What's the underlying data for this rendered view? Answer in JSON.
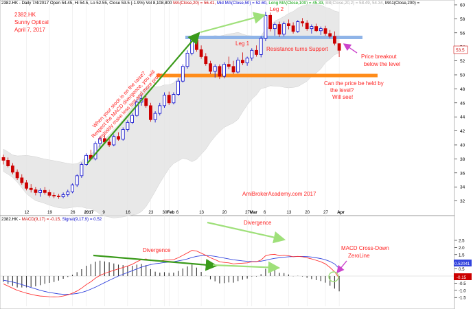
{
  "header": {
    "prefix": "2382.HK - Daily 7/4/2017 Open 54.45, Hi 54.5, Lo 52.55, Close 53.5 (-1.9%) Vol 8,108,800",
    "ma20": "MA(Close,20) = 56.41,",
    "mid": "Mid MA(Close,50) = 52.60,",
    "long": "Long MA(Close,100) = 45.33,",
    "faint": "BB(Close,20,2) = 58.49, 54.34,",
    "ma200": "MA1(Close,200) ="
  },
  "macd_header": {
    "prefix": "2382.HK -",
    "macd": "MACD(9,17) = -0.15,",
    "signal": "Signal(9,17,9) = 0.52"
  },
  "title_block": {
    "ticker": "2382.HK",
    "name": "Sunny Optical",
    "date": "April 7, 2017"
  },
  "annotations": {
    "leg1": "Leg 1",
    "leg2": "Leg 2",
    "resistance": "Resistance turns Support",
    "breakout1": "Price breakout",
    "breakout2": "below the level",
    "held1": "Can the price be held by",
    "held2": "the level?",
    "held3": "Will see!",
    "diag1": "When your stock is on the raise?",
    "diag2": "Respect the MACD divergence, you will",
    "diag3": "probably make less lost and more profit.",
    "watermark": "AmiBrokerAcademy.com  2017",
    "divergence_top": "Divergence",
    "divergence_low": "Divergence",
    "macd_cross1": "MACD Cross-Down",
    "macd_cross2": "ZeroLine"
  },
  "colors": {
    "up": "#0000cc",
    "down": "#cc0000",
    "band": "#e0e0e0",
    "support": "#ff8c1a",
    "resistance": "#8fb4e8",
    "macd": "#ff3333",
    "signal": "#3344dd",
    "annot": "#ff2222",
    "dark_green": "#3a9a1a",
    "light_green": "#9fe07a",
    "purple": "#cc44cc"
  },
  "price_axis": {
    "labels": [
      "60",
      "58",
      "56",
      "54",
      "52",
      "50",
      "48",
      "46",
      "44",
      "42",
      "40",
      "38",
      "36",
      "34",
      "32"
    ],
    "current": "53.5"
  },
  "macd_axis": {
    "labels": [
      "2.5",
      "2.0",
      "1.5",
      "1.0",
      "0.5",
      "0.0",
      "-0.5",
      "-1.0",
      "-1.5"
    ],
    "macd_tag": "-0.15",
    "signal_tag": "0.52041"
  },
  "x_axis": {
    "labels": [
      "12",
      "19",
      "26",
      "2017",
      "9",
      "16",
      "23",
      "30",
      "Feb",
      "6",
      "13",
      "20",
      "27",
      "Mar",
      "6",
      "13",
      "20",
      "27",
      "Apr"
    ]
  },
  "chart_data": {
    "type": "candlestick",
    "price_ylim": [
      31,
      60
    ],
    "macd_ylim": [
      -1.6,
      2.8
    ],
    "levels": {
      "resistance_turned_support": 55.2,
      "support": 50.1
    },
    "candles": [
      [
        38.2,
        38.6,
        37.2,
        37.8
      ],
      [
        37.8,
        38.2,
        36.8,
        37.0
      ],
      [
        37.0,
        37.4,
        35.8,
        36.1
      ],
      [
        36.1,
        36.5,
        35.0,
        35.3
      ],
      [
        35.3,
        35.8,
        34.3,
        34.6
      ],
      [
        34.6,
        35.0,
        33.5,
        33.8
      ],
      [
        33.8,
        34.4,
        33.2,
        33.6
      ],
      [
        33.6,
        34.0,
        32.8,
        33.2
      ],
      [
        33.2,
        33.8,
        32.6,
        33.5
      ],
      [
        33.5,
        34.0,
        32.9,
        33.2
      ],
      [
        33.2,
        33.6,
        32.5,
        32.8
      ],
      [
        32.8,
        33.2,
        32.4,
        32.7
      ],
      [
        32.7,
        33.0,
        32.3,
        32.6
      ],
      [
        32.6,
        33.2,
        32.4,
        32.9
      ],
      [
        32.9,
        33.6,
        32.6,
        33.3
      ],
      [
        33.3,
        34.5,
        33.1,
        34.3
      ],
      [
        34.3,
        35.8,
        34.0,
        35.6
      ],
      [
        35.6,
        37.5,
        35.3,
        37.2
      ],
      [
        37.2,
        38.8,
        37.0,
        38.5
      ],
      [
        38.5,
        39.3,
        37.9,
        38.0
      ],
      [
        38.0,
        40.5,
        37.8,
        40.2
      ],
      [
        40.2,
        41.2,
        39.6,
        40.9
      ],
      [
        40.9,
        41.4,
        40.1,
        40.4
      ],
      [
        40.4,
        40.9,
        39.7,
        40.0
      ],
      [
        40.0,
        41.5,
        39.8,
        41.2
      ],
      [
        41.2,
        41.8,
        40.6,
        40.8
      ],
      [
        40.8,
        42.5,
        40.6,
        42.2
      ],
      [
        42.2,
        43.5,
        41.9,
        43.2
      ],
      [
        43.2,
        44.5,
        43.0,
        44.2
      ],
      [
        44.2,
        46.5,
        44.0,
        46.1
      ],
      [
        46.1,
        47.2,
        45.6,
        46.6
      ],
      [
        46.6,
        47.0,
        45.3,
        45.6
      ],
      [
        45.6,
        46.0,
        43.3,
        43.6
      ],
      [
        43.6,
        44.8,
        43.2,
        44.5
      ],
      [
        44.5,
        46.0,
        44.2,
        45.6
      ],
      [
        45.6,
        47.5,
        45.3,
        47.1
      ],
      [
        47.1,
        47.6,
        45.7,
        46.0
      ],
      [
        46.0,
        47.5,
        45.8,
        47.2
      ],
      [
        47.2,
        49.5,
        47.0,
        49.1
      ],
      [
        49.1,
        51.5,
        48.9,
        51.2
      ],
      [
        51.2,
        53.5,
        50.9,
        53.1
      ],
      [
        53.1,
        55.5,
        52.8,
        55.2
      ],
      [
        55.2,
        55.8,
        53.3,
        53.6
      ],
      [
        53.6,
        54.2,
        52.3,
        52.6
      ],
      [
        52.6,
        53.1,
        51.3,
        51.6
      ],
      [
        51.6,
        52.0,
        50.1,
        50.5
      ],
      [
        50.5,
        51.5,
        49.6,
        51.2
      ],
      [
        51.2,
        51.5,
        49.4,
        49.8
      ],
      [
        49.8,
        51.8,
        49.5,
        51.5
      ],
      [
        51.5,
        52.6,
        50.8,
        51.2
      ],
      [
        51.2,
        52.0,
        50.1,
        50.4
      ],
      [
        50.4,
        52.5,
        50.2,
        52.1
      ],
      [
        52.1,
        53.2,
        51.4,
        51.7
      ],
      [
        51.7,
        52.6,
        51.3,
        52.4
      ],
      [
        52.4,
        53.8,
        52.0,
        53.5
      ],
      [
        53.5,
        54.2,
        52.6,
        52.9
      ],
      [
        52.9,
        55.5,
        52.5,
        55.2
      ],
      [
        55.2,
        59.0,
        54.8,
        58.5
      ],
      [
        58.5,
        58.9,
        56.2,
        56.6
      ],
      [
        56.6,
        57.5,
        55.6,
        57.2
      ],
      [
        57.2,
        57.6,
        55.4,
        55.8
      ],
      [
        55.8,
        57.6,
        55.5,
        57.3
      ],
      [
        57.3,
        57.9,
        56.5,
        57.0
      ],
      [
        57.0,
        57.5,
        55.9,
        56.2
      ],
      [
        56.2,
        57.8,
        56.0,
        57.6
      ],
      [
        57.6,
        58.1,
        56.9,
        57.4
      ],
      [
        57.4,
        57.8,
        56.3,
        56.6
      ],
      [
        56.6,
        57.2,
        55.9,
        56.9
      ],
      [
        56.9,
        57.3,
        56.1,
        56.3
      ],
      [
        56.3,
        56.9,
        55.7,
        56.6
      ],
      [
        56.6,
        57.0,
        55.6,
        55.9
      ],
      [
        55.9,
        56.4,
        55.2,
        55.5
      ],
      [
        55.5,
        56.2,
        54.2,
        54.5
      ],
      [
        54.45,
        54.5,
        52.55,
        53.5
      ]
    ],
    "macd": [
      -0.55,
      -0.7,
      -0.85,
      -1.0,
      -1.1,
      -1.2,
      -1.28,
      -1.35,
      -1.4,
      -1.42,
      -1.45,
      -1.46,
      -1.45,
      -1.4,
      -1.32,
      -1.2,
      -1.05,
      -0.85,
      -0.6,
      -0.4,
      -0.15,
      0.05,
      0.18,
      0.3,
      0.4,
      0.5,
      0.6,
      0.7,
      0.82,
      1.0,
      1.15,
      1.2,
      1.1,
      1.05,
      1.05,
      1.12,
      1.12,
      1.15,
      1.28,
      1.45,
      1.62,
      1.8,
      1.75,
      1.6,
      1.45,
      1.28,
      1.15,
      1.0,
      0.95,
      0.92,
      0.85,
      0.88,
      0.9,
      0.92,
      1.0,
      1.0,
      1.12,
      1.42,
      1.5,
      1.52,
      1.42,
      1.45,
      1.42,
      1.35,
      1.38,
      1.35,
      1.28,
      1.2,
      1.1,
      1.0,
      0.85,
      0.6,
      0.3,
      -0.15
    ],
    "signal": [
      -0.3,
      -0.35,
      -0.42,
      -0.5,
      -0.6,
      -0.7,
      -0.8,
      -0.9,
      -1.0,
      -1.08,
      -1.15,
      -1.2,
      -1.25,
      -1.28,
      -1.28,
      -1.26,
      -1.22,
      -1.15,
      -1.05,
      -0.92,
      -0.78,
      -0.62,
      -0.46,
      -0.3,
      -0.15,
      0.0,
      0.12,
      0.25,
      0.37,
      0.5,
      0.62,
      0.72,
      0.8,
      0.86,
      0.9,
      0.95,
      0.98,
      1.0,
      1.06,
      1.12,
      1.2,
      1.3,
      1.38,
      1.42,
      1.44,
      1.42,
      1.38,
      1.32,
      1.26,
      1.2,
      1.14,
      1.1,
      1.06,
      1.03,
      1.02,
      1.02,
      1.04,
      1.1,
      1.18,
      1.24,
      1.28,
      1.32,
      1.35,
      1.36,
      1.37,
      1.37,
      1.36,
      1.33,
      1.28,
      1.22,
      1.14,
      1.02,
      0.85,
      0.52
    ]
  }
}
